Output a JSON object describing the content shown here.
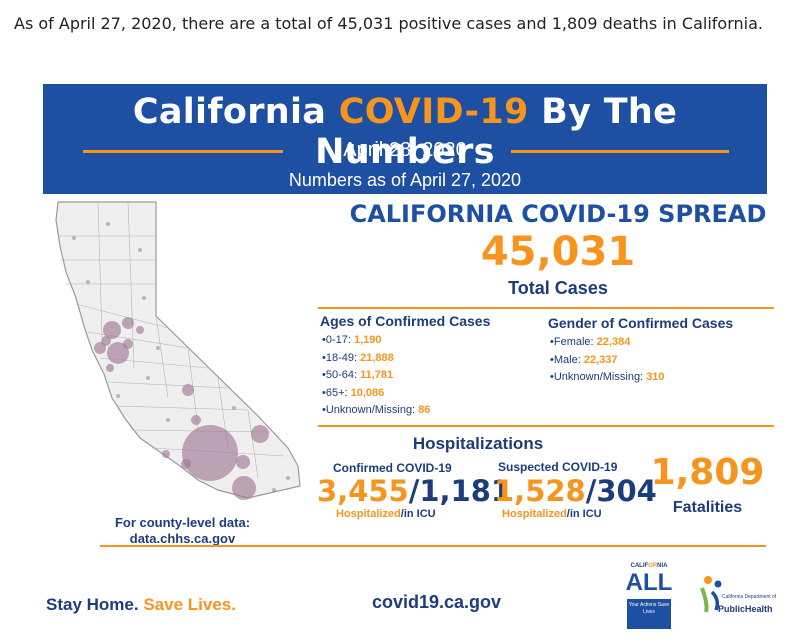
{
  "intro_text": "As of April 27, 2020, there are a total of 45,031 positive cases and 1,809 deaths in California.",
  "banner": {
    "title_part1": "California",
    "title_accent": "COVID-19",
    "title_part2": "By The Numbers",
    "date": "April 28, 2020",
    "as_of": "Numbers as of April 27, 2020"
  },
  "spread": {
    "heading": "CALIFORNIA COVID-19 SPREAD",
    "total": "45,031",
    "total_label": "Total Cases"
  },
  "ages": {
    "heading": "Ages of Confirmed Cases",
    "items": [
      {
        "label": "0-17:",
        "value": "1,190"
      },
      {
        "label": "18-49:",
        "value": "21,888"
      },
      {
        "label": "50-64:",
        "value": "11,781"
      },
      {
        "label": "65+:",
        "value": "10,086"
      },
      {
        "label": "Unknown/Missing:",
        "value": "86"
      }
    ]
  },
  "gender": {
    "heading": "Gender of Confirmed Cases",
    "items": [
      {
        "label": "Female:",
        "value": "22,384"
      },
      {
        "label": "Male:",
        "value": "22,337"
      },
      {
        "label": "Unknown/Missing:",
        "value": "310"
      }
    ]
  },
  "hospitalizations": {
    "heading": "Hospitalizations",
    "confirmed": {
      "label": "Confirmed COVID-19",
      "hospitalized": "3,455",
      "icu": "1,181",
      "slash": "/",
      "foot_hosp": "Hospitalized",
      "foot_icu": "/in ICU"
    },
    "suspected": {
      "label": "Suspected COVID-19",
      "hospitalized": "1,528",
      "icu": "304",
      "slash": "/",
      "foot_hosp": "Hospitalized",
      "foot_icu": "/in ICU"
    }
  },
  "fatalities": {
    "value": "1,809",
    "label": "Fatalities"
  },
  "county_link": {
    "line1": "For county-level data:",
    "line2": "data.chhs.ca.gov"
  },
  "footer": {
    "stay_home": "Stay Home.",
    "save_lives": "Save Lives.",
    "website": "covid19.ca.gov"
  },
  "logos": {
    "ca_all_top_1": "CALIF",
    "ca_all_top_2": "OR",
    "ca_all_top_3": "NIA",
    "ca_all_word": "ALL",
    "ca_all_tagline": "Your Actions Save Lives",
    "public_health_dept": "California Department of",
    "public_health_name": "PublicHealth"
  },
  "colors": {
    "navy": "#1d3d7a",
    "banner_blue": "#1d4fa3",
    "orange": "#f7941d",
    "bubble": "#a07895"
  }
}
